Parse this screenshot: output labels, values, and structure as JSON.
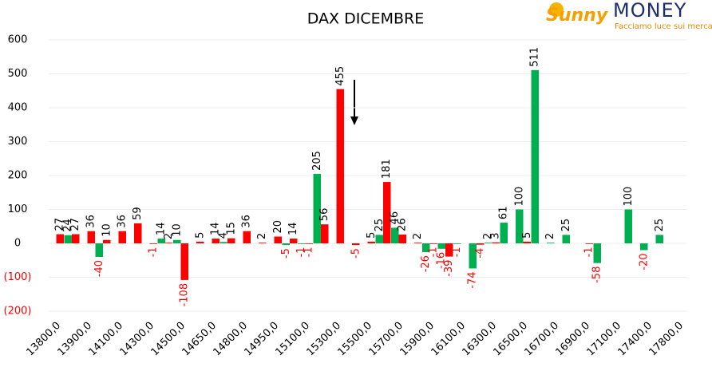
{
  "logo": {
    "brand1": "Sunny",
    "brand2": "MONEY",
    "tagline": "Facciamo luce sui mercati"
  },
  "chart_data": {
    "type": "bar",
    "title": "DAX DICEMBRE",
    "categories": [
      "13800,0",
      null,
      "13900,0",
      null,
      "14100,0",
      null,
      "14300,0",
      null,
      "14500,0",
      null,
      "14650,0",
      null,
      "14800,0",
      null,
      "14950,0",
      null,
      "15100,0",
      null,
      "15300,0",
      null,
      "15500,0",
      null,
      "15700,0",
      null,
      "15900,0",
      null,
      "16100,0",
      null,
      "16300,0",
      null,
      "16500,0",
      null,
      "16700,0",
      null,
      "16900,0",
      null,
      "17100,0",
      null,
      "17400,0",
      null,
      "17800,0"
    ],
    "series": [
      {
        "color": "#00b050",
        "values": [
          null,
          24,
          null,
          -40,
          null,
          null,
          null,
          14,
          10,
          null,
          null,
          4,
          null,
          null,
          null,
          -5,
          -1,
          205,
          null,
          null,
          null,
          25,
          46,
          null,
          -26,
          -16,
          -1,
          -74,
          2,
          61,
          100,
          511,
          2,
          25,
          null,
          -58,
          null,
          100,
          -20,
          25,
          null
        ]
      },
      {
        "color": "#ff0000",
        "values": [
          27,
          27,
          36,
          10,
          36,
          59,
          -1,
          2,
          -108,
          5,
          14,
          15,
          36,
          2,
          20,
          14,
          -1,
          56,
          455,
          -5,
          5,
          181,
          26,
          2,
          -1,
          -39,
          null,
          -4,
          3,
          null,
          5,
          null,
          null,
          null,
          -1,
          null,
          null,
          null,
          null,
          null,
          null
        ]
      }
    ],
    "ylim": [
      -200,
      600
    ],
    "yticks": [
      {
        "value": -200,
        "label": "(200)"
      },
      {
        "value": -100,
        "label": "(100)"
      },
      0,
      100,
      200,
      300,
      400,
      500,
      600
    ],
    "grid": true,
    "negative_color": "#ff0000"
  }
}
